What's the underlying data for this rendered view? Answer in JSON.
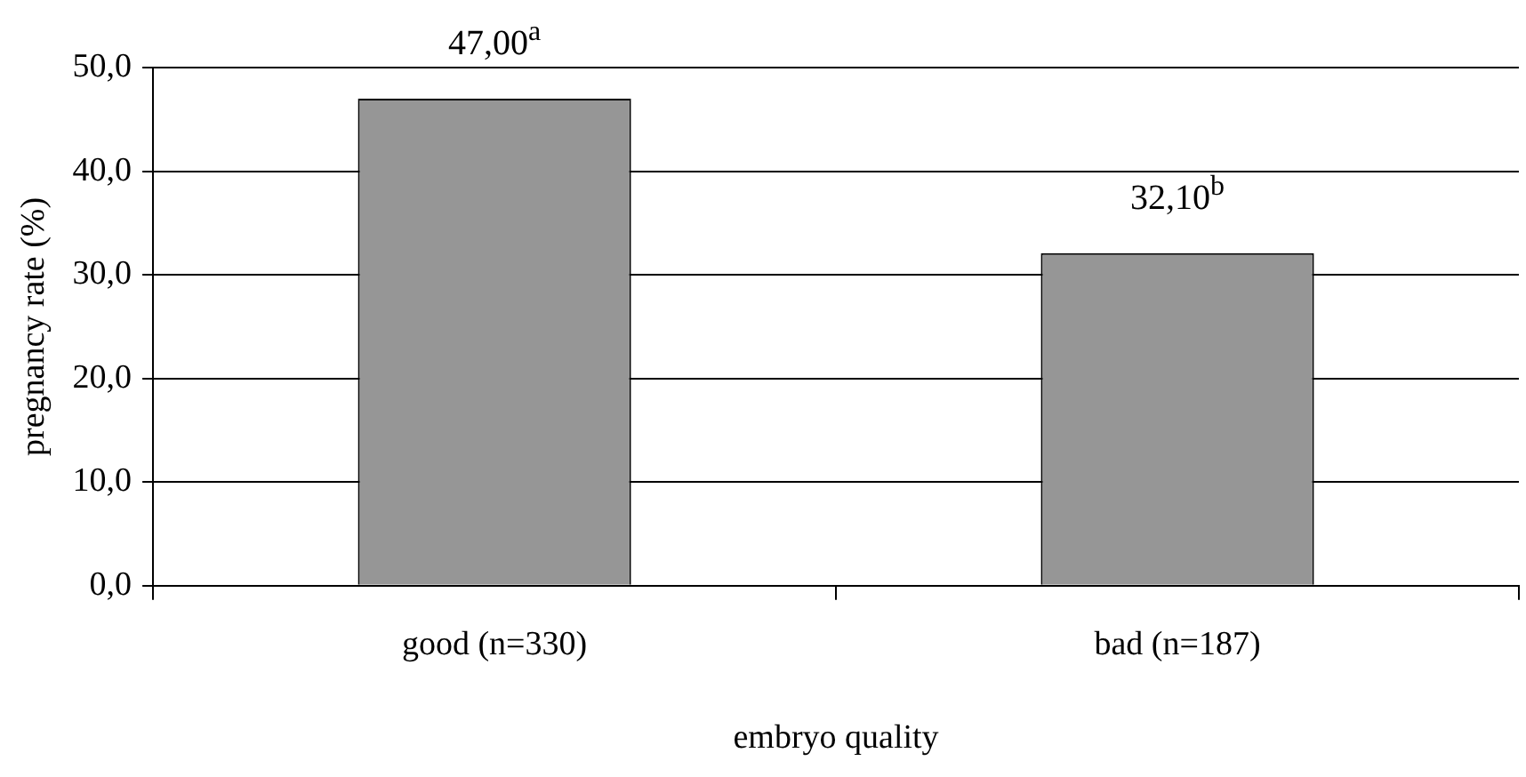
{
  "chart_data": {
    "type": "bar",
    "xlabel": "embryo quality",
    "ylabel": "pregnancy rate (%)",
    "categories": [
      "good (n=330)",
      "bad (n=187)"
    ],
    "values": [
      47.0,
      32.1
    ],
    "color": "#969696",
    "value_labels": [
      "47,00$^{a}$",
      "32,10$^{b}$"
    ],
    "ylim": [
      0,
      50
    ],
    "yticks": [
      {
        "value": 0,
        "label": "0,0"
      },
      {
        "value": 10,
        "label": "10,0"
      },
      {
        "value": 20,
        "label": "20,0"
      },
      {
        "value": 30,
        "label": "30,0"
      },
      {
        "value": 40,
        "label": "40,0"
      },
      {
        "value": 50,
        "label": "50,0"
      }
    ],
    "grid": "y",
    "legend": false
  }
}
